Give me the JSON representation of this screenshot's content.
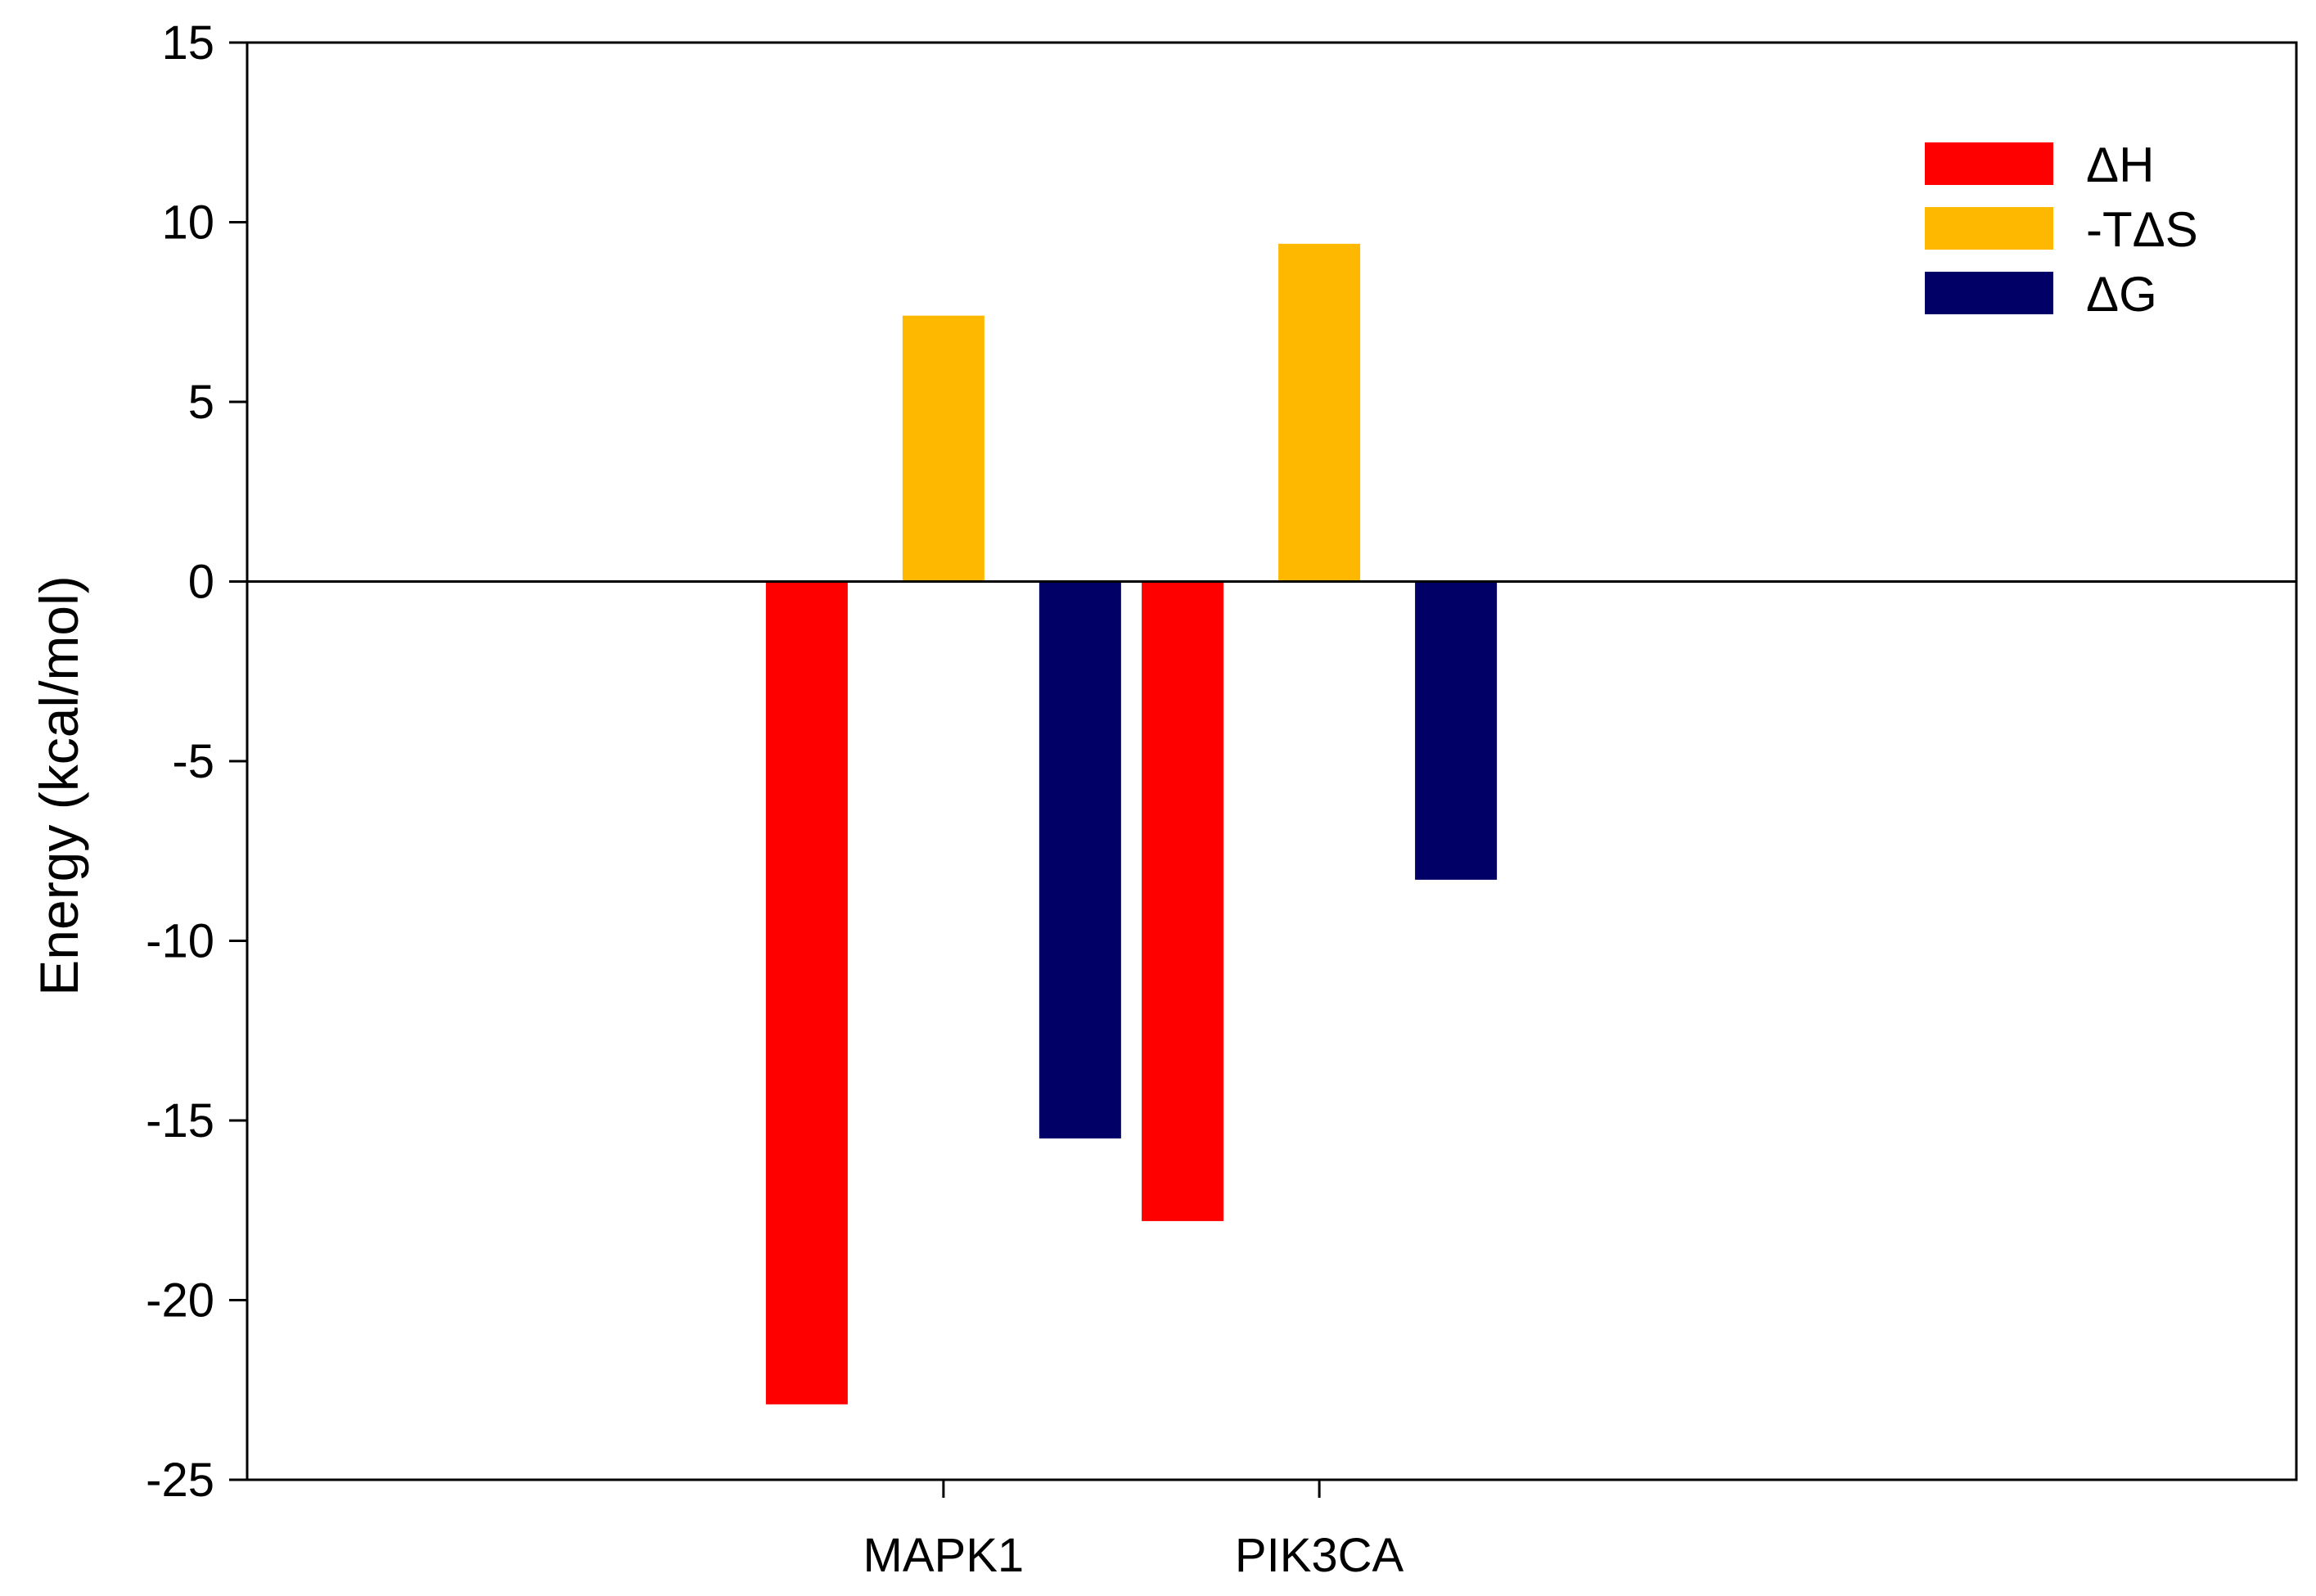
{
  "chart_data": {
    "type": "bar",
    "title": "",
    "xlabel": "",
    "ylabel": "Energy (kcal/mol)",
    "ylim": [
      -25,
      15
    ],
    "yticks": [
      15,
      10,
      5,
      0,
      -5,
      -10,
      -15,
      -20,
      -25
    ],
    "categories": [
      "MAPK1",
      "PIK3CA"
    ],
    "series": [
      {
        "name": "ΔH",
        "color": "#ff0000",
        "values": [
          -22.9,
          -17.8
        ]
      },
      {
        "name": "-TΔS",
        "color": "#ffb800",
        "values": [
          7.4,
          9.4
        ]
      },
      {
        "name": "ΔG",
        "color": "#000066",
        "values": [
          -15.5,
          -8.3
        ]
      }
    ],
    "grid": false,
    "legend_position": "top-right",
    "zero_line": true
  }
}
